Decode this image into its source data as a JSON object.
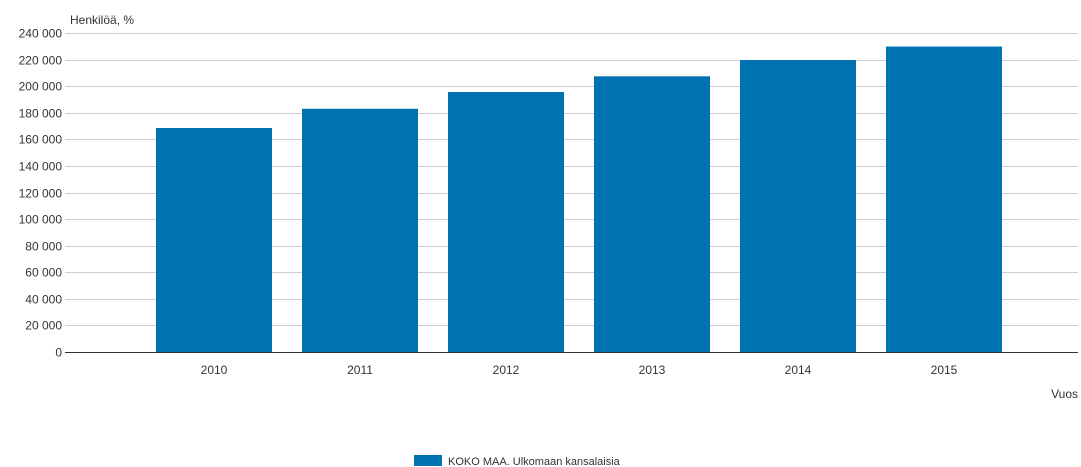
{
  "chart_data": {
    "type": "bar",
    "ylabel": "Henkilöä, %",
    "xlabel": "Vuos",
    "categories": [
      "2010",
      "2011",
      "2012",
      "2013",
      "2014",
      "2015"
    ],
    "series": [
      {
        "name": "KOKO MAA. Ulkomaan kansalaisia",
        "values": [
          168500,
          183000,
          195600,
          207400,
          219700,
          229800
        ],
        "color": "#0072B2"
      }
    ],
    "ylim": [
      0,
      240000
    ],
    "yticks": [
      0,
      20000,
      40000,
      60000,
      80000,
      100000,
      120000,
      140000,
      160000,
      180000,
      200000,
      220000,
      240000
    ],
    "ytick_labels": [
      "0",
      "20 000",
      "40 000",
      "60 000",
      "80 000",
      "100 000",
      "120 000",
      "140 000",
      "160 000",
      "180 000",
      "200 000",
      "220 000",
      "240 000"
    ],
    "grid": true,
    "legend_position": "bottom-center"
  }
}
